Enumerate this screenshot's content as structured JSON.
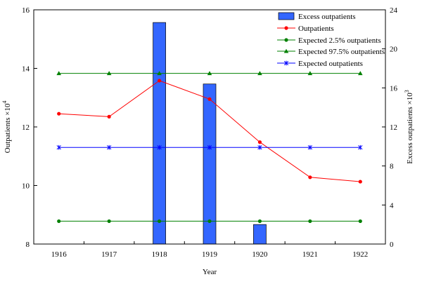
{
  "chart_data": {
    "type": "bar+line",
    "categories": [
      "1916",
      "1917",
      "1918",
      "1919",
      "1920",
      "1921",
      "1922"
    ],
    "xlabel": "Year",
    "ylabel_left": "Outpatients ×10",
    "ylabel_left_exp": "4",
    "ylabel_right": "Excess outpatients ×10",
    "ylabel_right_exp": "3",
    "ylim_left": [
      8,
      16
    ],
    "yticks_left": [
      8,
      10,
      12,
      14,
      16
    ],
    "ylim_right": [
      0,
      24
    ],
    "yticks_right": [
      0,
      4,
      8,
      12,
      16,
      20,
      24
    ],
    "grid": false,
    "legend_position": "top-right",
    "bars": {
      "name": "Excess outpatients",
      "axis": "right",
      "color": "#3366ff",
      "values": [
        null,
        null,
        22.7,
        16.4,
        2.0,
        null,
        null
      ]
    },
    "series": [
      {
        "name": "Outpatients",
        "axis": "left",
        "color": "#ff0000",
        "marker": "circle",
        "values": [
          12.45,
          12.35,
          13.58,
          12.95,
          11.48,
          10.28,
          10.13
        ]
      },
      {
        "name": "Expected 2.5% outpatients",
        "axis": "left",
        "color": "#008000",
        "marker": "circle",
        "values": [
          8.78,
          8.78,
          8.78,
          8.78,
          8.78,
          8.78,
          8.78
        ]
      },
      {
        "name": "Expected 97.5% outpatients",
        "axis": "left",
        "color": "#008000",
        "marker": "triangle",
        "values": [
          13.83,
          13.83,
          13.83,
          13.83,
          13.83,
          13.83,
          13.83
        ]
      },
      {
        "name": "Expected outpatients",
        "axis": "left",
        "color": "#0000ff",
        "marker": "asterisk",
        "values": [
          11.3,
          11.3,
          11.3,
          11.3,
          11.3,
          11.3,
          11.3
        ]
      }
    ]
  }
}
